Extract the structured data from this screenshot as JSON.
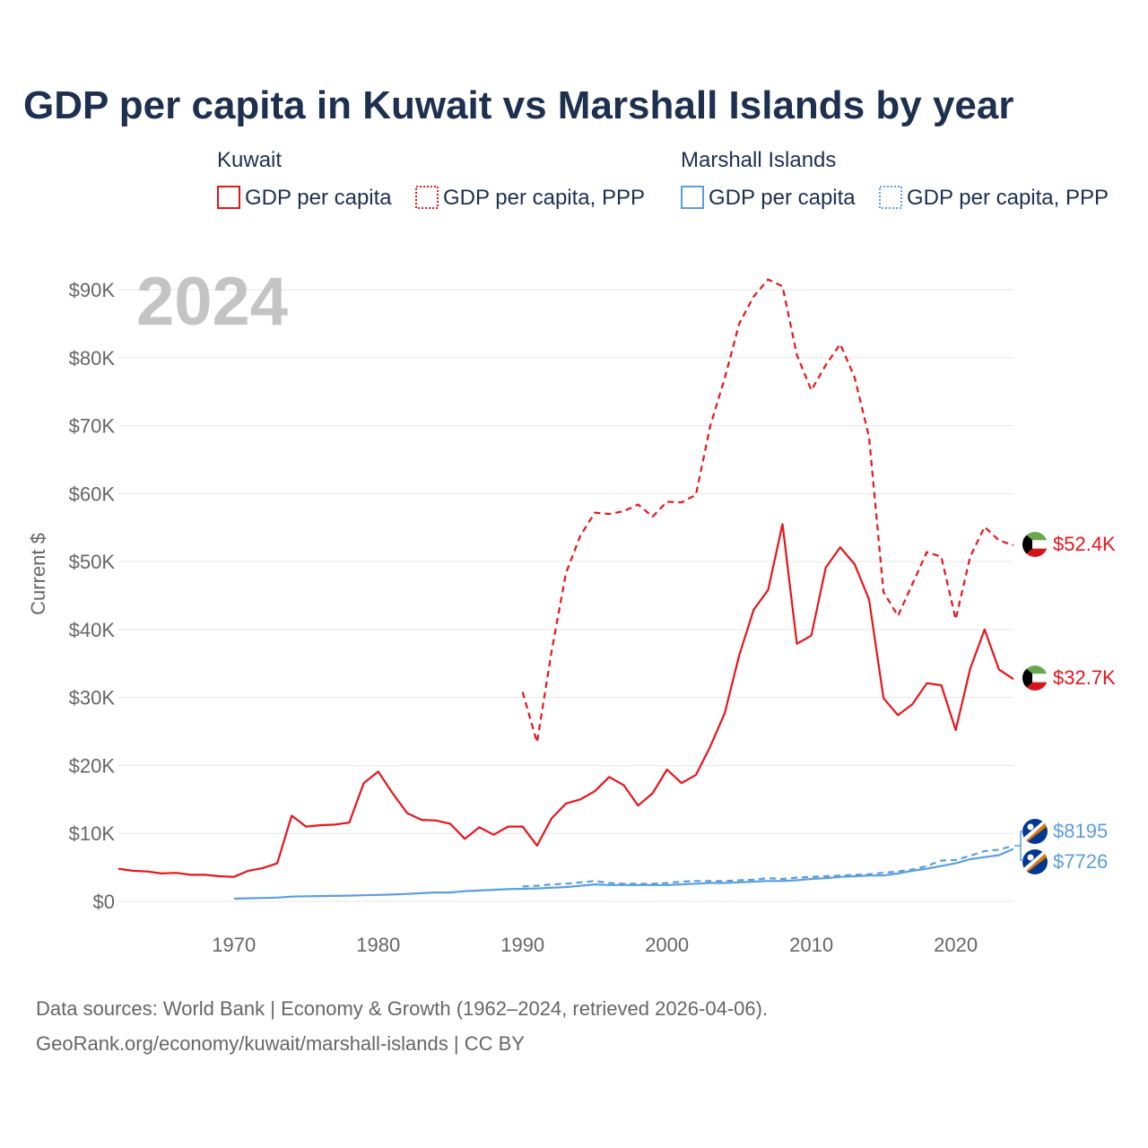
{
  "title": "GDP per capita in Kuwait vs Marshall Islands by year",
  "year_display": "2024",
  "colors": {
    "kuwait": "#e8141c",
    "marshall": "#5b9ee0",
    "grid": "#e6e6e6",
    "tick": "#666666",
    "title": "#1d3050"
  },
  "legend": {
    "kuwait": {
      "group": "Kuwait",
      "items": [
        "GDP per capita",
        "GDP per capita, PPP"
      ]
    },
    "marshall": {
      "group": "Marshall Islands",
      "items": [
        "GDP per capita",
        "GDP per capita, PPP"
      ]
    }
  },
  "end_labels": {
    "kuwait_ppp": "$52.4K",
    "kuwait_gdp": "$32.7K",
    "marshall_ppp": "$8195",
    "marshall_gdp": "$7726"
  },
  "source_lines": [
    "Data sources: World Bank | Economy & Growth (1962–2024, retrieved 2026-04-06).",
    "GeoRank.org/economy/kuwait/marshall-islands | CC BY"
  ],
  "chart_data": {
    "type": "line",
    "title": "GDP per capita in Kuwait vs Marshall Islands by year",
    "xlabel": "",
    "ylabel": "Current $",
    "xlim": [
      1962,
      2024
    ],
    "ylim": [
      0,
      90000
    ],
    "x_ticks": [
      1970,
      1980,
      1990,
      2000,
      2010,
      2020
    ],
    "y_ticks": [
      0,
      10000,
      20000,
      30000,
      40000,
      50000,
      60000,
      70000,
      80000,
      90000
    ],
    "y_tick_labels": [
      "$0",
      "$10K",
      "$20K",
      "$30K",
      "$40K",
      "$50K",
      "$60K",
      "$70K",
      "$80K",
      "$90K"
    ],
    "grid": true,
    "series": [
      {
        "name": "Kuwait GDP per capita",
        "color": "#e8141c",
        "dash": "solid",
        "x": [
          1962,
          1963,
          1964,
          1965,
          1966,
          1967,
          1968,
          1969,
          1970,
          1971,
          1972,
          1973,
          1974,
          1975,
          1976,
          1977,
          1978,
          1979,
          1980,
          1981,
          1982,
          1983,
          1984,
          1985,
          1986,
          1987,
          1988,
          1989,
          1990,
          1991,
          1992,
          1993,
          1994,
          1995,
          1996,
          1997,
          1998,
          1999,
          2000,
          2001,
          2002,
          2003,
          2004,
          2005,
          2006,
          2007,
          2008,
          2009,
          2010,
          2011,
          2012,
          2013,
          2014,
          2015,
          2016,
          2017,
          2018,
          2019,
          2020,
          2021,
          2022,
          2023,
          2024
        ],
        "y": [
          4800,
          4500,
          4400,
          4100,
          4200,
          3900,
          3900,
          3700,
          3600,
          4500,
          4900,
          5600,
          12600,
          11000,
          11200,
          11300,
          11600,
          17400,
          19100,
          15900,
          13000,
          12000,
          11900,
          11400,
          9200,
          10900,
          9800,
          11000,
          11000,
          8200,
          12200,
          14400,
          15000,
          16200,
          18300,
          17100,
          14100,
          15900,
          19400,
          17400,
          18600,
          22800,
          27700,
          36200,
          42900,
          45800,
          55500,
          37900,
          39100,
          49100,
          52100,
          49600,
          44400,
          29900,
          27400,
          29000,
          32100,
          31800,
          25200,
          34200,
          40000,
          34100,
          32700
        ]
      },
      {
        "name": "Kuwait GDP per capita, PPP",
        "color": "#e8141c",
        "dash": "dashed",
        "x": [
          1990,
          1991,
          1992,
          1993,
          1994,
          1995,
          1996,
          1997,
          1998,
          1999,
          2000,
          2001,
          2002,
          2003,
          2004,
          2005,
          2006,
          2007,
          2008,
          2009,
          2010,
          2011,
          2012,
          2013,
          2014,
          2015,
          2016,
          2017,
          2018,
          2019,
          2020,
          2021,
          2022,
          2023,
          2024
        ],
        "y": [
          30800,
          23400,
          36700,
          48300,
          53800,
          57200,
          57000,
          57400,
          58400,
          56600,
          58800,
          58700,
          59800,
          70000,
          77000,
          85000,
          89000,
          91500,
          90500,
          80400,
          75200,
          78900,
          82000,
          77100,
          68300,
          45500,
          42000,
          46700,
          51400,
          50700,
          41500,
          50700,
          55100,
          53100,
          52400
        ]
      },
      {
        "name": "Marshall Islands GDP per capita",
        "color": "#5b9ee0",
        "dash": "solid",
        "x": [
          1970,
          1971,
          1972,
          1973,
          1974,
          1975,
          1976,
          1977,
          1978,
          1979,
          1980,
          1981,
          1982,
          1983,
          1984,
          1985,
          1986,
          1987,
          1988,
          1989,
          1990,
          1991,
          1992,
          1993,
          1994,
          1995,
          1996,
          1997,
          1998,
          1999,
          2000,
          2001,
          2002,
          2003,
          2004,
          2005,
          2006,
          2007,
          2008,
          2009,
          2010,
          2011,
          2012,
          2013,
          2014,
          2015,
          2016,
          2017,
          2018,
          2019,
          2020,
          2021,
          2022,
          2023,
          2024
        ],
        "y": [
          400,
          450,
          500,
          550,
          700,
          750,
          780,
          800,
          850,
          900,
          950,
          1000,
          1100,
          1200,
          1300,
          1300,
          1500,
          1600,
          1700,
          1800,
          1850,
          1900,
          2000,
          2100,
          2300,
          2500,
          2400,
          2400,
          2400,
          2400,
          2400,
          2500,
          2600,
          2700,
          2700,
          2800,
          2900,
          3000,
          3000,
          3100,
          3300,
          3400,
          3600,
          3700,
          3800,
          3800,
          4100,
          4500,
          4800,
          5200,
          5600,
          6200,
          6500,
          6800,
          7726
        ]
      },
      {
        "name": "Marshall Islands GDP per capita, PPP",
        "color": "#5b9ee0",
        "dash": "dashed",
        "x": [
          1990,
          1991,
          1992,
          1993,
          1994,
          1995,
          1996,
          1997,
          1998,
          1999,
          2000,
          2001,
          2002,
          2003,
          2004,
          2005,
          2006,
          2007,
          2008,
          2009,
          2010,
          2011,
          2012,
          2013,
          2014,
          2015,
          2016,
          2017,
          2018,
          2019,
          2020,
          2021,
          2022,
          2023,
          2024
        ],
        "y": [
          2200,
          2300,
          2500,
          2600,
          2800,
          3000,
          2700,
          2600,
          2600,
          2600,
          2700,
          2900,
          3000,
          3000,
          3000,
          3100,
          3200,
          3400,
          3300,
          3500,
          3600,
          3700,
          3800,
          3900,
          4000,
          4200,
          4400,
          4700,
          5200,
          6000,
          6100,
          6700,
          7400,
          7600,
          8195
        ]
      }
    ]
  }
}
